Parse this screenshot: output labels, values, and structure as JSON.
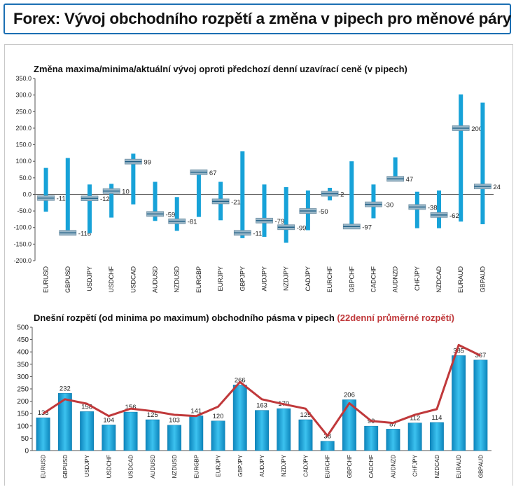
{
  "page_title": "Forex: Vývoj obchodního rozpětí a změna v pipech pro měnové páry",
  "colors": {
    "accent": "#1b6fb3",
    "bar": "#17a2d8",
    "marker": "#9ab7c8",
    "line": "#c0393b"
  },
  "chart_data": [
    {
      "type": "range",
      "title": "Změna maxima/minima/aktuální vývoj oproti předchozí denní uzavírací ceně (v pipech)",
      "ylim": [
        -200,
        350
      ],
      "yticks": [
        "-200.0",
        "-150.0",
        "-100.0",
        "-50.0",
        "0.0",
        "50.0",
        "100.0",
        "150.0",
        "200.0",
        "250.0",
        "300.0",
        "350.0"
      ],
      "categories": [
        "EURUSD",
        "GBPUSD",
        "USDJPY",
        "USDCHF",
        "USDCAD",
        "AUDUSD",
        "NZDUSD",
        "EURGBP",
        "EURJPY",
        "GBPJPY",
        "AUDJPY",
        "NZDJPY",
        "CADJPY",
        "EURCHF",
        "GBPCHF",
        "CADCHF",
        "AUDNZD",
        "CHFJPY",
        "NZDCAD",
        "EURAUD",
        "GBPAUD"
      ],
      "high": [
        80,
        110,
        30,
        32,
        123,
        38,
        -8,
        70,
        38,
        130,
        30,
        22,
        12,
        20,
        100,
        30,
        112,
        8,
        12,
        302,
        277
      ],
      "low": [
        -52,
        -120,
        -117,
        -70,
        -30,
        -80,
        -110,
        -68,
        -78,
        -132,
        -128,
        -146,
        -108,
        -18,
        -100,
        -72,
        40,
        -102,
        -102,
        -82,
        -90
      ],
      "current": [
        -11,
        -116,
        -12,
        10,
        99,
        -59,
        -81,
        67,
        -21,
        -116,
        -79,
        -99,
        -50,
        2,
        -97,
        -30,
        47,
        -38,
        -62,
        200,
        24
      ],
      "labels": [
        "-11",
        "-116",
        "-12",
        "10",
        "99",
        "-59",
        "-81",
        "67",
        "-21",
        "-116",
        "-79",
        "-99",
        "-50",
        "2",
        "-97",
        "-30",
        "47",
        "-38",
        "-62",
        "200",
        "24"
      ]
    },
    {
      "type": "bar",
      "title": "Dnešní rozpětí (od minima po maximum) obchodního pásma v pipech",
      "title_suffix": "(22denní průměrné rozpětí)",
      "ylim": [
        0,
        500
      ],
      "yticks": [
        "0",
        "50",
        "100",
        "150",
        "200",
        "250",
        "300",
        "350",
        "400",
        "450",
        "500"
      ],
      "categories": [
        "EURUSD",
        "GBPUSD",
        "USDJPY",
        "USDCHF",
        "USDCAD",
        "AUDUSD",
        "NZDUSD",
        "EURGBP",
        "EURJPY",
        "GBPJPY",
        "AUDJPY",
        "NZDJPY",
        "CADJPY",
        "EURCHF",
        "GBPCHF",
        "CADCHF",
        "AUDNZD",
        "CHFJPY",
        "NZDCAD",
        "EURAUD",
        "GBPAUD"
      ],
      "values": [
        133,
        232,
        158,
        104,
        156,
        125,
        103,
        141,
        120,
        266,
        163,
        170,
        125,
        38,
        206,
        99,
        87,
        112,
        114,
        385,
        367
      ],
      "labels": [
        "133",
        "232",
        "158",
        "104",
        "156",
        "125",
        "103",
        "141",
        "120",
        "266",
        "163",
        "170",
        "125",
        "38",
        "206",
        "99",
        "87",
        "112",
        "114",
        "385",
        "367"
      ],
      "average": [
        150,
        208,
        190,
        140,
        170,
        160,
        145,
        140,
        178,
        278,
        208,
        188,
        170,
        60,
        192,
        120,
        112,
        145,
        168,
        428,
        385
      ]
    }
  ]
}
